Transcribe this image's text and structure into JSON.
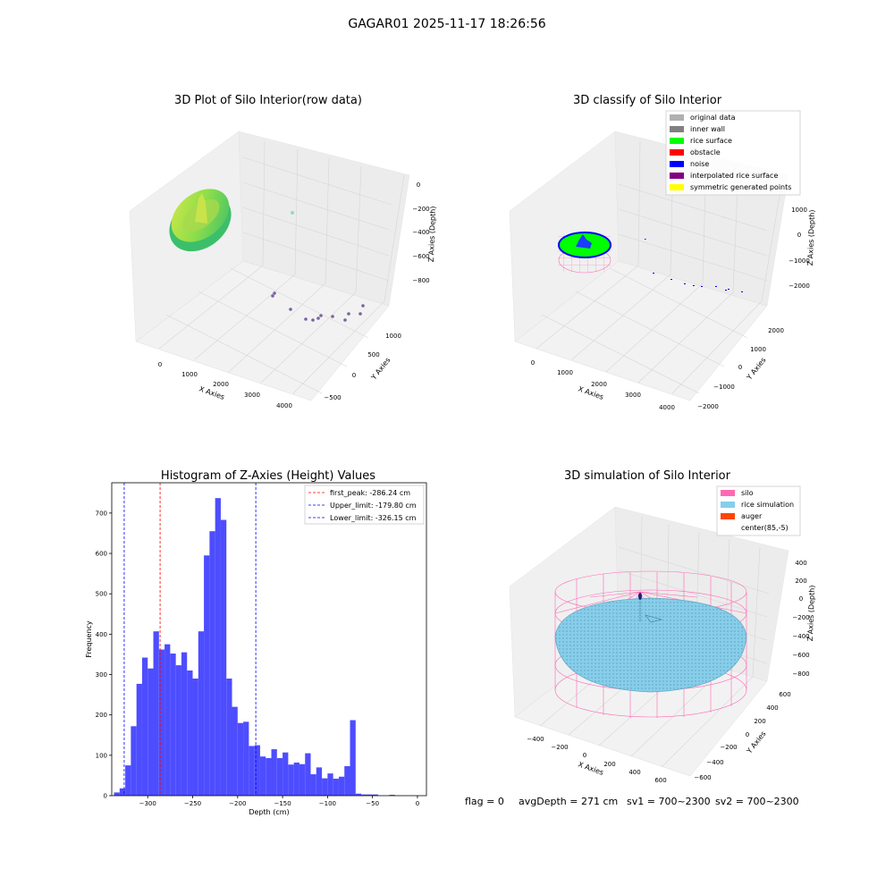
{
  "suptitle": "GAGAR01 2025-11-17 18:26:56",
  "footer": {
    "flag": "flag = 0",
    "avg_depth": "avgDepth = 271 cm",
    "sv1": "sv1 = 700~2300",
    "sv2": "sv2 = 700~2300"
  },
  "colors": {
    "hist_bar": "#4d4dff",
    "peak_line": "#ff0000",
    "limit_line": "#0000ff",
    "silo": "#ff69b4",
    "rice_sim": "#87ceeb",
    "auger": "#ff4500",
    "rice_surface": "#00ff00",
    "noise": "#0000ff"
  },
  "chart_data": [
    {
      "type": "scatter",
      "title": "3D Plot of Silo Interior(row data)",
      "xlabel": "X Axies",
      "ylabel": "Y Axies",
      "zlabel": "Z Axies (Depth)",
      "x_ticks": [
        "0",
        "1000",
        "2000",
        "3000",
        "4000"
      ],
      "y_ticks": [
        "−500",
        "0",
        "500",
        "1000"
      ],
      "z_ticks": [
        "0",
        "−200",
        "−400",
        "−600",
        "−800"
      ],
      "grid": true
    },
    {
      "type": "scatter",
      "title": "3D classify of Silo Interior",
      "xlabel": "X Axies",
      "ylabel": "Y Axies",
      "zlabel": "Z Axies (Depth)",
      "x_ticks": [
        "0",
        "1000",
        "2000",
        "3000",
        "4000"
      ],
      "y_ticks": [
        "−2000",
        "−1000",
        "0",
        "1000",
        "2000"
      ],
      "z_ticks": [
        "1000",
        "0",
        "−1000",
        "−2000"
      ],
      "legend": [
        {
          "label": "original data",
          "color": "#b0b0b0"
        },
        {
          "label": "inner wall",
          "color": "#808080"
        },
        {
          "label": "rice surface",
          "color": "#00ff00"
        },
        {
          "label": "obstacle",
          "color": "#ff0000"
        },
        {
          "label": "noise",
          "color": "#0000ff"
        },
        {
          "label": "interpolated rice surface",
          "color": "#800080"
        },
        {
          "label": "symmetric generated points",
          "color": "#ffff00"
        }
      ],
      "legend_position": "top-right",
      "grid": true
    },
    {
      "type": "bar",
      "title": "Histogram of Z-Axies (Height) Values",
      "xlabel": "Depth (cm)",
      "ylabel": "Frequency",
      "xlim": [
        -340,
        10
      ],
      "ylim": [
        0,
        775
      ],
      "x_ticks": [
        -300,
        -250,
        -200,
        -150,
        -100,
        -50,
        0
      ],
      "x_tick_labels": [
        "−300",
        "−250",
        "−200",
        "−150",
        "−100",
        "−50",
        "0"
      ],
      "y_ticks": [
        0,
        100,
        200,
        300,
        400,
        500,
        600,
        700
      ],
      "bin_start": -337.5,
      "bin_width": 6.25,
      "values": [
        8,
        18,
        75,
        172,
        277,
        342,
        315,
        407,
        362,
        375,
        352,
        323,
        355,
        310,
        290,
        407,
        595,
        655,
        737,
        683,
        290,
        220,
        180,
        183,
        123,
        125,
        97,
        93,
        115,
        93,
        107,
        77,
        82,
        78,
        105,
        53,
        70,
        43,
        55,
        42,
        47,
        73,
        187,
        5,
        3,
        3,
        3,
        0,
        0,
        2
      ],
      "vlines": [
        {
          "label": "first_peak: -286.24 cm",
          "x": -286.24,
          "color": "#ff0000"
        },
        {
          "label": "Upper_limit: -179.80 cm",
          "x": -179.8,
          "color": "#0000ff"
        },
        {
          "label": "Lower_limit: -326.15 cm",
          "x": -326.15,
          "color": "#0000ff"
        }
      ],
      "legend_position": "top-right"
    },
    {
      "type": "scatter",
      "title": "3D simulation of Silo Interior",
      "xlabel": "X Axies",
      "ylabel": "Y Axies",
      "zlabel": "Z Axies (Depth)",
      "x_ticks": [
        "−400",
        "−200",
        "0",
        "200",
        "400",
        "600"
      ],
      "y_ticks": [
        "−600",
        "−400",
        "−200",
        "0",
        "200",
        "400",
        "600"
      ],
      "z_ticks": [
        "400",
        "200",
        "0",
        "−200",
        "−400",
        "−600",
        "−800"
      ],
      "legend": [
        {
          "label": "silo",
          "color": "#ff69b4"
        },
        {
          "label": "rice simulation",
          "color": "#87ceeb"
        },
        {
          "label": "auger",
          "color": "#ff4500"
        },
        {
          "label": "center(85,-5)",
          "color": "#ffffff"
        }
      ],
      "legend_position": "top-right",
      "grid": true
    }
  ]
}
